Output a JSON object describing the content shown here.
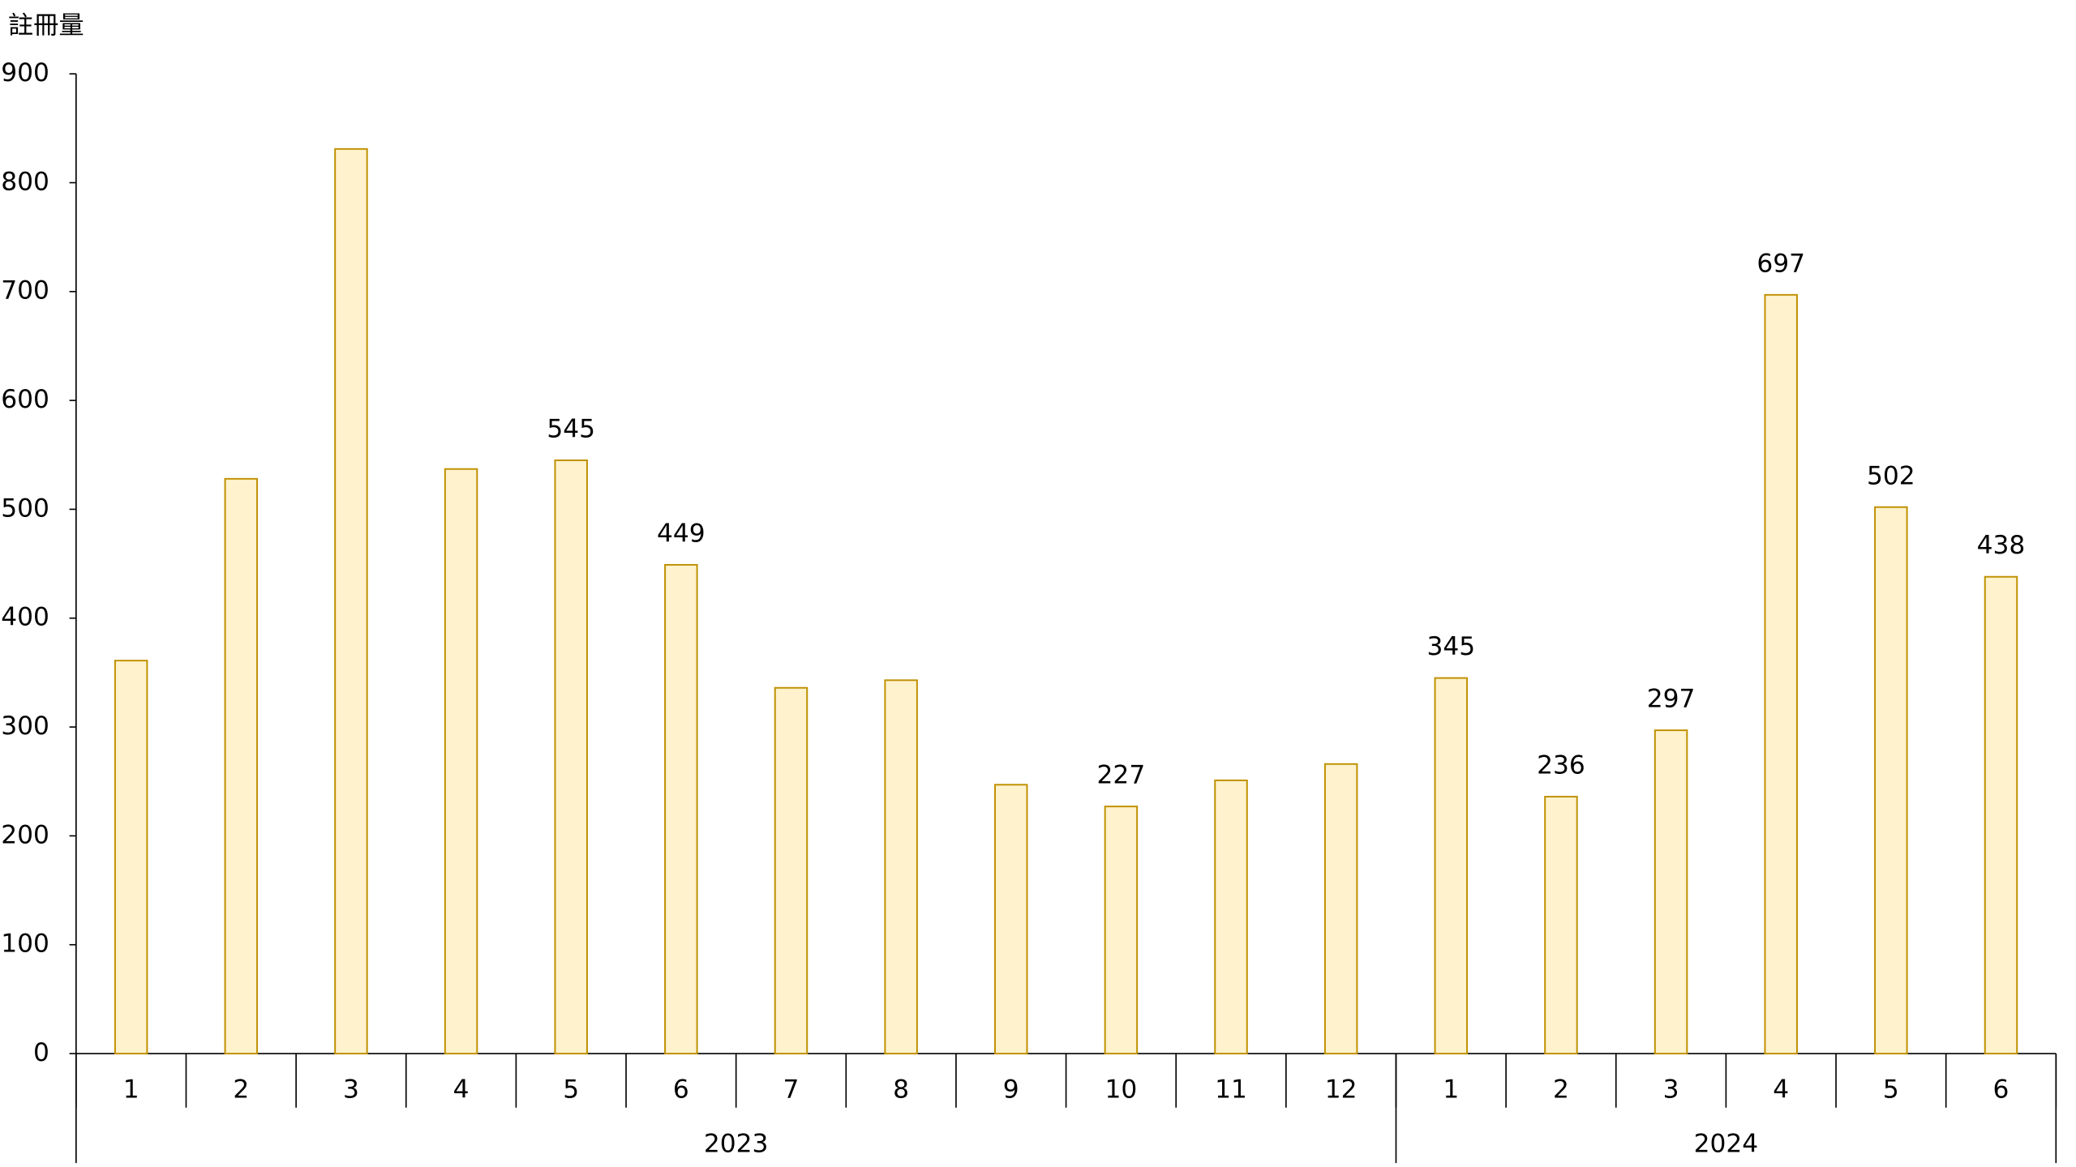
{
  "chart_data": {
    "type": "bar",
    "y_label": "註冊量",
    "categories": [
      "1",
      "2",
      "3",
      "4",
      "5",
      "6",
      "7",
      "8",
      "9",
      "10",
      "11",
      "12",
      "1",
      "2",
      "3",
      "4",
      "5",
      "6"
    ],
    "x_groups": [
      {
        "label": "2023",
        "span": 12
      },
      {
        "label": "2024",
        "span": 6
      }
    ],
    "values": [
      361,
      528,
      831,
      537,
      545,
      449,
      336,
      343,
      247,
      227,
      251,
      266,
      345,
      236,
      297,
      697,
      502,
      438
    ],
    "value_labels": [
      null,
      null,
      null,
      null,
      "545",
      "449",
      null,
      null,
      null,
      "227",
      null,
      null,
      "345",
      "236",
      "297",
      "697",
      "502",
      "438"
    ],
    "color": "#fff2cc",
    "edge_color": "#bf9000",
    "ylim": [
      0,
      900
    ],
    "yticks": [
      0,
      100,
      200,
      300,
      400,
      500,
      600,
      700,
      800,
      900
    ],
    "grid": false
  }
}
